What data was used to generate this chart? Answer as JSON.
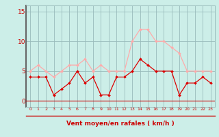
{
  "hours": [
    0,
    1,
    2,
    3,
    4,
    5,
    6,
    7,
    8,
    9,
    10,
    11,
    12,
    13,
    14,
    15,
    16,
    17,
    18,
    19,
    20,
    21,
    22,
    23
  ],
  "wind_avg": [
    4,
    4,
    4,
    1,
    2,
    3,
    5,
    3,
    4,
    1,
    1,
    4,
    4,
    5,
    7,
    6,
    5,
    5,
    5,
    1,
    3,
    3,
    4,
    3
  ],
  "wind_gust": [
    5,
    6,
    5,
    4,
    5,
    6,
    6,
    7,
    5,
    6,
    5,
    5,
    5,
    10,
    12,
    12,
    10,
    10,
    9,
    8,
    5,
    5,
    5,
    5
  ],
  "avg_color": "#dd0000",
  "gust_color": "#ffaaaa",
  "bg_color": "#cceee8",
  "grid_color": "#99bbbb",
  "xlabel": "Vent moyen/en rafales ( km/h )",
  "xlabel_color": "#cc0000",
  "tick_color": "#cc0000",
  "arrow_line_color": "#cc0000",
  "left_spine_color": "#666666",
  "ylim_min": -1,
  "ylim_max": 16,
  "yticks": [
    0,
    5,
    10,
    15
  ],
  "line_width": 0.9,
  "marker_size": 2.0,
  "marker_style": "D"
}
